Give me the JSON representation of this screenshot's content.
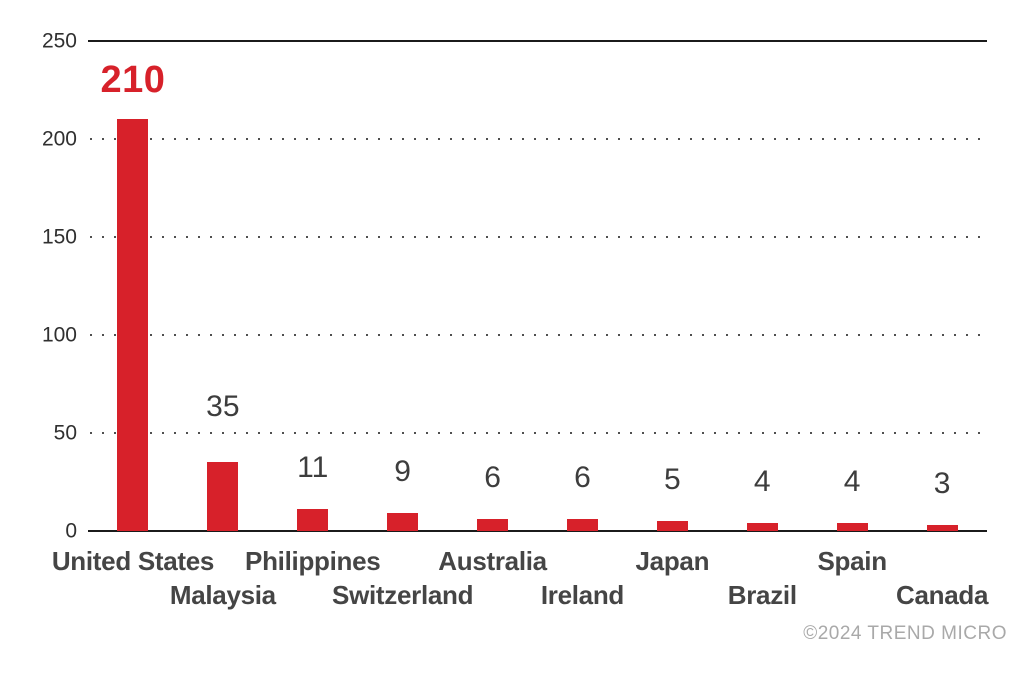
{
  "chart_data": {
    "type": "bar",
    "categories": [
      "United States",
      "Malaysia",
      "Philippines",
      "Switzerland",
      "Australia",
      "Ireland",
      "Japan",
      "Brazil",
      "Spain",
      "Canada"
    ],
    "values": [
      210,
      35,
      11,
      9,
      6,
      6,
      5,
      4,
      4,
      3
    ],
    "title": "",
    "xlabel": "",
    "ylabel": "",
    "ylim": [
      0,
      250
    ],
    "yticks": [
      0,
      50,
      100,
      150,
      200,
      250
    ],
    "solid_line_ticks": [
      0,
      250
    ],
    "grid": "dotted horizontal gridlines at 50, 100, 150, 200; solid lines at 0 and 250",
    "legend": "none",
    "bar_color": "#d7212a",
    "highlight_value_label": {
      "index": 0,
      "color": "#d7212a"
    },
    "x_label_layout": "staggered two rows"
  },
  "footer": {
    "copyright": "©2024 TREND MICRO"
  },
  "colors": {
    "background": "#ffffff",
    "bar": "#d7212a",
    "value_label": "#3d3d3d",
    "category_label": "#454545",
    "tick_label": "#303030",
    "axis_line": "#1b1b1b",
    "grid_dot": "#4f4f4f",
    "copyright": "#a9a9a9"
  }
}
